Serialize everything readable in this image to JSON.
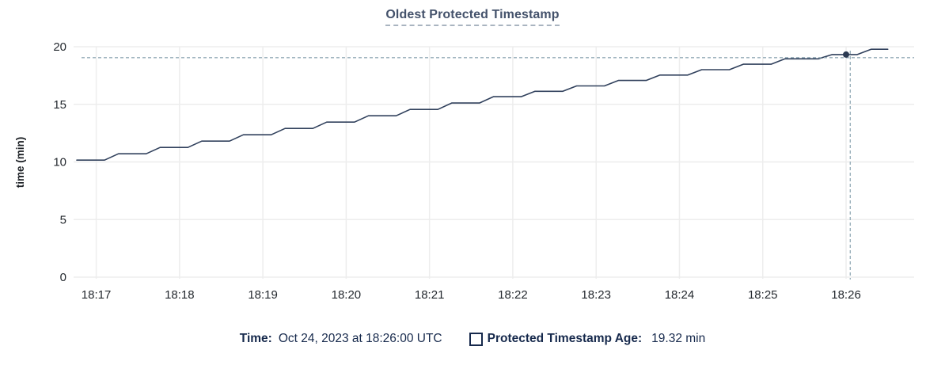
{
  "chart": {
    "title": "Oldest Protected Timestamp"
  },
  "legend": {
    "time_label": "Time:",
    "time_value": "Oct 24, 2023 at 18:26:00 UTC",
    "series_label": "Protected Timestamp Age:",
    "series_value": "19.32 min",
    "swatch_icon": "checkbox-outline"
  },
  "colors": {
    "series_line": "#30405c",
    "highlight_dot": "#2b3a52",
    "crosshair": "#94abb7",
    "gridline": "#ededed",
    "axis_text": "#24292f",
    "axis_title_text": "#1d2126",
    "title_text": "#44526b",
    "legend_text": "#16294c"
  },
  "chart_data": {
    "type": "line",
    "title": "Oldest Protected Timestamp",
    "xlabel": "",
    "ylabel": "time (min)",
    "ylim": [
      0,
      20
    ],
    "yticks": [
      0,
      5,
      10,
      15,
      20
    ],
    "xticks": [
      "18:17",
      "18:18",
      "18:19",
      "18:20",
      "18:21",
      "18:22",
      "18:23",
      "18:24",
      "18:25",
      "18:26"
    ],
    "x_domain": [
      "18:16:46",
      "18:26:49"
    ],
    "grid": true,
    "legend_position": "bottom-center",
    "series": [
      {
        "name": "Protected Timestamp Age",
        "units": "min",
        "points": [
          [
            "18:16:46",
            10.16
          ],
          [
            "18:17:06",
            10.16
          ],
          [
            "18:17:16",
            10.71
          ],
          [
            "18:17:36",
            10.71
          ],
          [
            "18:17:46",
            11.26
          ],
          [
            "18:18:06",
            11.26
          ],
          [
            "18:18:16",
            11.81
          ],
          [
            "18:18:36",
            11.81
          ],
          [
            "18:18:46",
            12.36
          ],
          [
            "18:19:06",
            12.36
          ],
          [
            "18:19:16",
            12.91
          ],
          [
            "18:19:36",
            12.91
          ],
          [
            "18:19:46",
            13.46
          ],
          [
            "18:20:06",
            13.46
          ],
          [
            "18:20:16",
            14.01
          ],
          [
            "18:20:36",
            14.01
          ],
          [
            "18:20:46",
            14.56
          ],
          [
            "18:21:06",
            14.56
          ],
          [
            "18:21:16",
            15.11
          ],
          [
            "18:21:36",
            15.11
          ],
          [
            "18:21:46",
            15.66
          ],
          [
            "18:22:06",
            15.66
          ],
          [
            "18:22:16",
            16.13
          ],
          [
            "18:22:36",
            16.13
          ],
          [
            "18:22:46",
            16.6
          ],
          [
            "18:23:06",
            16.6
          ],
          [
            "18:23:16",
            17.07
          ],
          [
            "18:23:36",
            17.07
          ],
          [
            "18:23:46",
            17.54
          ],
          [
            "18:24:06",
            17.54
          ],
          [
            "18:24:16",
            18.01
          ],
          [
            "18:24:36",
            18.01
          ],
          [
            "18:24:46",
            18.48
          ],
          [
            "18:25:06",
            18.48
          ],
          [
            "18:25:16",
            18.95
          ],
          [
            "18:25:40",
            18.95
          ],
          [
            "18:25:50",
            19.32
          ],
          [
            "18:26:08",
            19.32
          ],
          [
            "18:26:18",
            19.78
          ],
          [
            "18:26:30",
            19.78
          ]
        ]
      }
    ],
    "crosshair": {
      "cursor_time": "18:26:03",
      "cursor_value": 19.05,
      "highlighted_point_time": "18:26:00",
      "highlighted_point_value": 19.32
    }
  }
}
